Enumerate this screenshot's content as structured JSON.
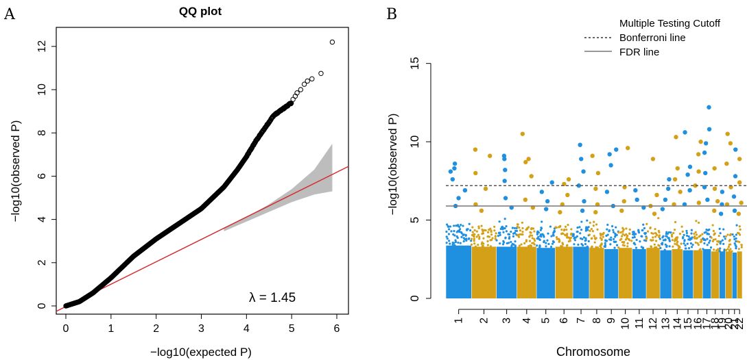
{
  "panels": {
    "A": {
      "label": "A"
    },
    "B": {
      "label": "B"
    }
  },
  "chart_data": [
    {
      "type": "scatter",
      "title": "QQ plot",
      "xlabel": "−log10(expected P)",
      "ylabel": "−log10(observed P)",
      "xlim": [
        0,
        6
      ],
      "ylim": [
        0,
        12.5
      ],
      "x_ticks": [
        "0",
        "1",
        "2",
        "3",
        "4",
        "5",
        "6"
      ],
      "y_ticks": [
        "0",
        "2",
        "4",
        "6",
        "8",
        "10",
        "12"
      ],
      "annotation": "λ = 1.45",
      "colors": {
        "points": "#000000",
        "reference_line": "#d62728",
        "confidence_band": "#bdbdbd"
      },
      "reference_line": {
        "x": [
          0,
          6
        ],
        "y": [
          0,
          6
        ]
      },
      "confidence_band": {
        "x": [
          3.5,
          4.0,
          4.5,
          5.0,
          5.5,
          5.9
        ],
        "lower": [
          3.45,
          3.9,
          4.35,
          4.8,
          5.15,
          5.3
        ],
        "upper": [
          3.6,
          4.1,
          4.7,
          5.4,
          6.3,
          7.5
        ]
      },
      "qq_curve": {
        "x": [
          0,
          0.3,
          0.6,
          1.0,
          1.5,
          2.0,
          2.5,
          3.0,
          3.5,
          3.8,
          4.0,
          4.2,
          4.4,
          4.6,
          4.8,
          5.0
        ],
        "y": [
          0,
          0.2,
          0.6,
          1.3,
          2.3,
          3.1,
          3.8,
          4.5,
          5.5,
          6.3,
          6.9,
          7.6,
          8.2,
          8.8,
          9.1,
          9.4
        ]
      },
      "top_points": {
        "x": [
          5.03,
          5.08,
          5.12,
          5.2,
          5.28,
          5.35,
          5.45,
          5.65,
          5.9
        ],
        "y": [
          9.55,
          9.7,
          9.85,
          10.0,
          10.25,
          10.4,
          10.5,
          10.75,
          12.2
        ]
      }
    },
    {
      "type": "scatter",
      "subtype": "manhattan",
      "xlabel": "Chromosome",
      "ylabel": "−log10(observed P)",
      "ylim": [
        0,
        18
      ],
      "y_ticks": [
        "0",
        "5",
        "10",
        "15"
      ],
      "chromosomes": [
        "1",
        "2",
        "3",
        "4",
        "5",
        "6",
        "7",
        "8",
        "9",
        "10",
        "11",
        "12",
        "13",
        "14",
        "15",
        "16",
        "17",
        "18",
        "19",
        "20",
        "21",
        "22"
      ],
      "colors": {
        "odd": "#1f8fe0",
        "even": "#d4a017",
        "bonferroni": "#555555",
        "fdr": "#777777"
      },
      "bonferroni_line": 7.2,
      "fdr_line": 5.9,
      "legend": {
        "title": "Multiple Testing Cutoff",
        "items": [
          {
            "label": "Bonferroni line",
            "style": "dashed"
          },
          {
            "label": "FDR line",
            "style": "solid"
          }
        ],
        "position": "top-right"
      },
      "baseline_height": [
        4.5,
        4.4,
        4.4,
        4.4,
        4.3,
        4.4,
        4.4,
        4.3,
        4.2,
        4.3,
        4.2,
        4.3,
        4.1,
        4.2,
        4.1,
        4.1,
        4.2,
        4.0,
        4.0,
        4.0,
        3.9,
        4.0
      ],
      "peaks": [
        [
          8.6,
          8.3,
          8.1,
          7.6,
          6.9,
          6.4,
          5.9
        ],
        [
          9.5,
          9.1,
          8.0,
          7.0,
          6.0,
          5.6
        ],
        [
          9.1,
          8.9,
          8.2,
          7.5,
          6.4,
          5.8
        ],
        [
          10.5,
          8.7,
          8.9,
          7.8,
          6.3,
          5.8
        ],
        [
          7.4,
          6.8,
          6.2,
          5.7
        ],
        [
          7.6,
          7.3,
          6.6,
          6.0,
          5.5
        ],
        [
          9.8,
          8.9,
          8.1,
          7.2,
          6.2,
          5.6
        ],
        [
          9.1,
          8.0,
          7.0,
          6.0,
          5.5
        ],
        [
          9.5,
          9.2,
          8.5,
          6.8,
          5.9
        ],
        [
          9.6,
          7.1,
          6.2,
          5.6
        ],
        [
          6.9,
          6.3,
          5.8
        ],
        [
          8.9,
          6.6,
          5.9,
          5.4
        ],
        [
          7.6,
          7.0,
          6.3,
          5.7
        ],
        [
          10.3,
          8.3,
          7.6,
          6.8,
          6.0
        ],
        [
          10.6,
          8.4,
          7.9,
          6.9,
          6.0
        ],
        [
          10.0,
          9.2,
          8.1,
          7.2,
          6.1
        ],
        [
          12.2,
          10.8,
          9.9,
          9.3,
          8.0,
          7.1,
          6.3
        ],
        [
          8.3,
          7.0,
          6.2,
          5.6
        ],
        [
          6.8,
          6.0,
          5.4
        ],
        [
          10.5,
          9.9,
          8.6,
          7.1,
          6.0
        ],
        [
          9.5,
          7.8,
          6.5,
          5.6
        ],
        [
          8.9,
          7.4,
          6.1,
          5.4
        ]
      ]
    }
  ]
}
